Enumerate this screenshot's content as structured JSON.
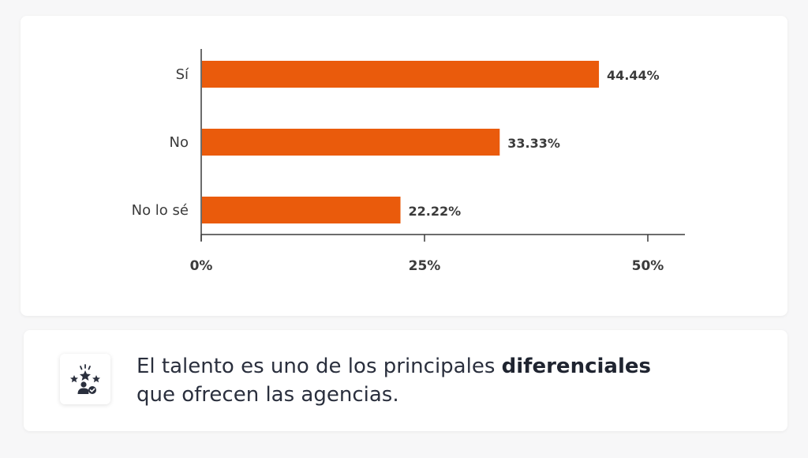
{
  "chart_data": {
    "type": "bar",
    "orientation": "horizontal",
    "categories": [
      "Sí",
      "No",
      "No lo sé"
    ],
    "values": [
      44.44,
      33.33,
      22.22
    ],
    "value_labels": [
      "44.44%",
      "33.33%",
      "22.22%"
    ],
    "xlim": [
      0,
      54
    ],
    "xticks": [
      0,
      25,
      50
    ],
    "xtick_labels": [
      "0%",
      "25%",
      "50%"
    ],
    "bar_color": "#ea5b0c",
    "grid": false,
    "legend": "none"
  },
  "note": {
    "icon": "award-stars-person-icon",
    "text_before": "El talento es uno de los principales ",
    "text_bold": "diferenciales",
    "text_after": "que ofrecen las agencias."
  },
  "colors": {
    "bar": "#ea5b0c",
    "axis": "#3b3b3b",
    "text": "#2a2f3d"
  }
}
